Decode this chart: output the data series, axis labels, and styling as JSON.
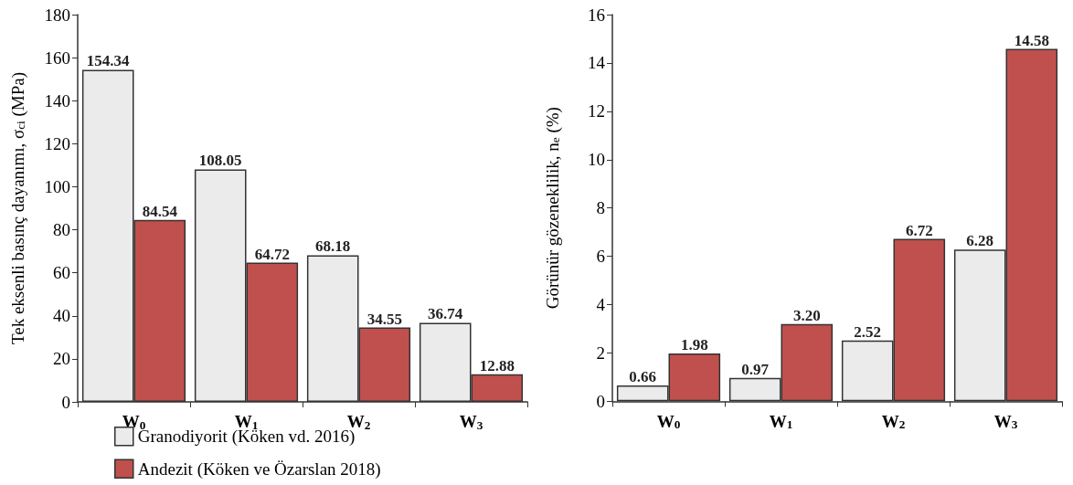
{
  "chart_data": [
    {
      "type": "bar",
      "categories": [
        "W$_{0}$",
        "W$_{1}$",
        "W$_{2}$",
        "W$_{3}$"
      ],
      "ylabel": "Tek eksenli basınç dayanımı, σ$_{ci}$ (MPa)",
      "ylim": [
        0,
        180
      ],
      "yticks": [
        0,
        20,
        40,
        60,
        80,
        100,
        120,
        140,
        160,
        180
      ],
      "grid": false,
      "legend": "bottom",
      "data_labels": true,
      "series": [
        {
          "name": "Granodiyorit (Köken vd. 2016)",
          "color": "#ebebeb",
          "values": [
            154.34,
            108.05,
            68.18,
            36.74
          ],
          "value_labels": [
            "154.34",
            "108.05",
            "68.18",
            "36.74"
          ]
        },
        {
          "name": "Andezit (Köken ve Özarslan 2018)",
          "color": "#c0504d",
          "values": [
            84.54,
            64.72,
            34.55,
            12.88
          ],
          "value_labels": [
            "84.54",
            "64.72",
            "34.55",
            "12.88"
          ]
        }
      ]
    },
    {
      "type": "bar",
      "categories": [
        "W$_{0}$",
        "W$_{1}$",
        "W$_{2}$",
        "W$_{3}$"
      ],
      "ylabel": "Görünür gözeneklilik, n$_{e}$ (%)",
      "ylim": [
        0,
        16
      ],
      "yticks": [
        0,
        2,
        4,
        6,
        8,
        10,
        12,
        14,
        16
      ],
      "grid": false,
      "legend": false,
      "data_labels": true,
      "series": [
        {
          "color": "#ebebeb",
          "values": [
            0.66,
            0.97,
            2.52,
            6.28
          ],
          "value_labels": [
            "0.66",
            "0.97",
            "2.52",
            "6.28"
          ]
        },
        {
          "color": "#c0504d",
          "values": [
            1.98,
            3.2,
            6.72,
            14.58
          ],
          "value_labels": [
            "1.98",
            "3.20",
            "6.72",
            "14.58"
          ]
        }
      ]
    }
  ]
}
